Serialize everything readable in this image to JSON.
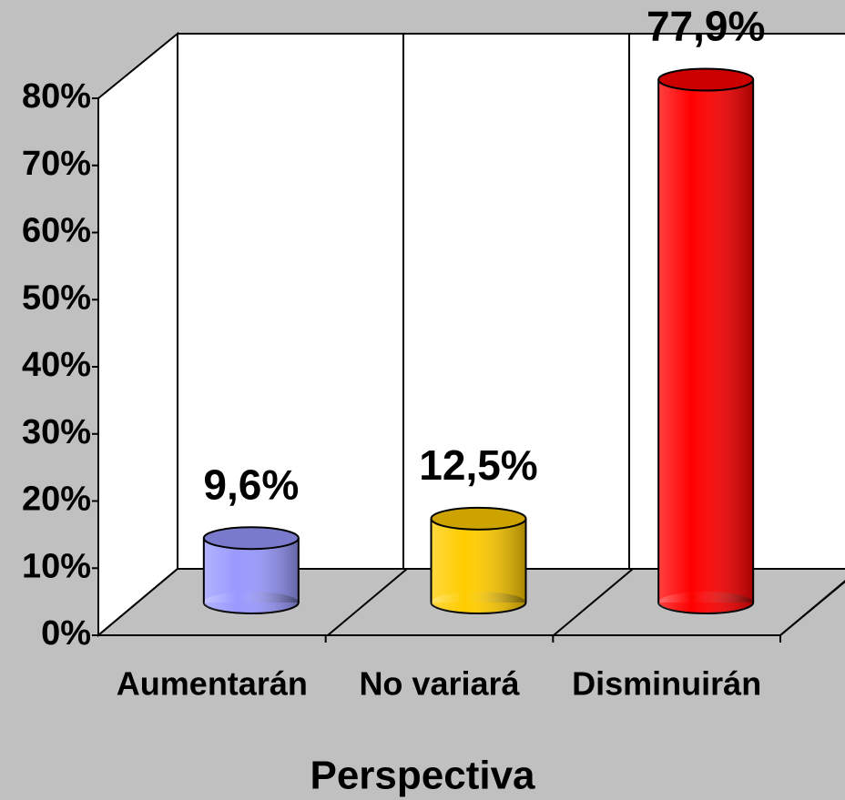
{
  "chart_data": {
    "type": "bar3d",
    "x_label": "Perspectiva",
    "categories": [
      "Aumentarán",
      "No variará",
      "Disminuirán"
    ],
    "values": [
      9.6,
      12.5,
      77.9
    ],
    "value_labels": [
      "9,6%",
      "12,5%",
      "77,9%"
    ],
    "colors": [
      "#9999ff",
      "#ffcc00",
      "#ff0000"
    ],
    "ylim": [
      0,
      80
    ],
    "yticks": [
      {
        "value": 0,
        "label": "0%"
      },
      {
        "value": 10,
        "label": "10%"
      },
      {
        "value": 20,
        "label": "20%"
      },
      {
        "value": 30,
        "label": "30%"
      },
      {
        "value": 40,
        "label": "40%"
      },
      {
        "value": 50,
        "label": "50%"
      },
      {
        "value": 60,
        "label": "60%"
      },
      {
        "value": 70,
        "label": "70%"
      },
      {
        "value": 80,
        "label": "80%"
      }
    ],
    "grid": false
  }
}
